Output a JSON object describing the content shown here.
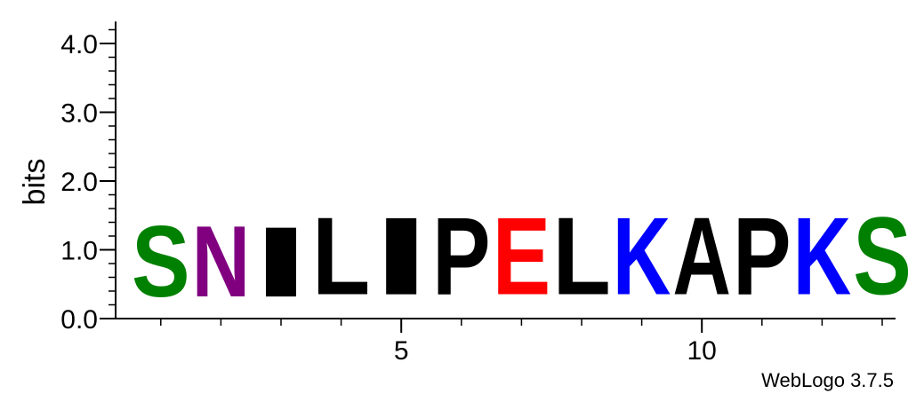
{
  "chart_data": {
    "type": "sequence-logo",
    "ylabel": "bits",
    "ylim": [
      0,
      4.32
    ],
    "y_ticks": [
      "0.0",
      "1.0",
      "2.0",
      "3.0",
      "4.0"
    ],
    "y_tick_values": [
      0,
      1,
      2,
      3,
      4
    ],
    "x_ticks": [
      "5",
      "10"
    ],
    "x_tick_positions": [
      5,
      10
    ],
    "positions": [
      {
        "pos": 1,
        "letter": "S",
        "bits": 1.65,
        "color": "#008000"
      },
      {
        "pos": 2,
        "letter": "N",
        "bits": 1.65,
        "color": "#800080"
      },
      {
        "pos": 3,
        "letter": "I",
        "bits": 1.63,
        "color": "#000000"
      },
      {
        "pos": 4,
        "letter": "L",
        "bits": 1.8,
        "color": "#000000"
      },
      {
        "pos": 5,
        "letter": "I",
        "bits": 1.8,
        "color": "#000000"
      },
      {
        "pos": 6,
        "letter": "P",
        "bits": 1.8,
        "color": "#000000"
      },
      {
        "pos": 7,
        "letter": "E",
        "bits": 1.8,
        "color": "#ff0000"
      },
      {
        "pos": 8,
        "letter": "L",
        "bits": 1.8,
        "color": "#000000"
      },
      {
        "pos": 9,
        "letter": "K",
        "bits": 1.8,
        "color": "#0000ff"
      },
      {
        "pos": 10,
        "letter": "A",
        "bits": 1.8,
        "color": "#000000"
      },
      {
        "pos": 11,
        "letter": "P",
        "bits": 1.8,
        "color": "#000000"
      },
      {
        "pos": 12,
        "letter": "K",
        "bits": 1.8,
        "color": "#0000ff"
      },
      {
        "pos": 13,
        "letter": "S",
        "bits": 1.8,
        "color": "#008000"
      }
    ],
    "footer": "WebLogo 3.7.5"
  }
}
